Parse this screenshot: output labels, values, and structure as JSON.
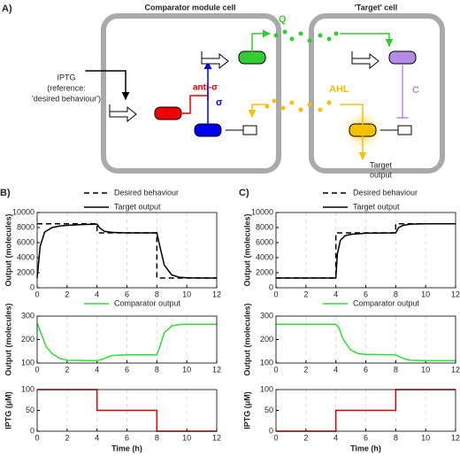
{
  "diagram": {
    "panel_label": "A)",
    "left_cell_title": "Comparator module cell",
    "right_cell_title": "'Target' cell",
    "iptg_lines": [
      "IPTG",
      "(reference:",
      "'desired behaviour')"
    ],
    "anti_sigma": "anti-σ",
    "sigma": "σ",
    "q": "Q",
    "ahl": "AHL",
    "c": "C",
    "target_output_lines": [
      "Target",
      "output"
    ]
  },
  "chart_data": [
    {
      "type": "line",
      "panel_label": "B)",
      "ylabel": "Output (molecules)",
      "xlim": [
        0,
        12
      ],
      "xticks": [
        0,
        2,
        4,
        6,
        8,
        10,
        12
      ],
      "ylim": [
        0,
        10000
      ],
      "yticks": [
        0,
        2000,
        4000,
        6000,
        8000,
        10000
      ],
      "xgrid": true,
      "legend": "top-right",
      "series": [
        {
          "name": "Desired behaviour",
          "color": "#000000",
          "linestyle": "dashed",
          "x": [
            0,
            4,
            4,
            8,
            8,
            12
          ],
          "values": [
            8500,
            8500,
            7300,
            7300,
            1300,
            1300
          ]
        },
        {
          "name": "Target output",
          "color": "#000000",
          "linestyle": "solid",
          "x": [
            0,
            0.2,
            0.5,
            1,
            1.5,
            2,
            3,
            4,
            4.2,
            4.5,
            5,
            6,
            8,
            8.2,
            8.5,
            9,
            9.5,
            10,
            11,
            12
          ],
          "values": [
            1300,
            5500,
            7400,
            8000,
            8200,
            8300,
            8400,
            8450,
            7900,
            7500,
            7350,
            7300,
            7300,
            5500,
            3000,
            1700,
            1400,
            1330,
            1300,
            1300
          ]
        }
      ]
    },
    {
      "type": "line",
      "ylabel": "Output (molecules)",
      "xlim": [
        0,
        12
      ],
      "xticks": [
        0,
        2,
        4,
        6,
        8,
        10,
        12
      ],
      "ylim": [
        100,
        300
      ],
      "yticks": [
        100,
        200,
        300
      ],
      "xgrid": true,
      "legend": "top-right",
      "series": [
        {
          "name": "Comparator output",
          "color": "#33dd33",
          "linestyle": "solid",
          "x": [
            0,
            0.3,
            0.6,
            1,
            1.5,
            2,
            4,
            4.3,
            4.7,
            5,
            6,
            8,
            8.2,
            8.5,
            9,
            9.5,
            10,
            12
          ],
          "values": [
            270,
            220,
            170,
            140,
            120,
            112,
            110,
            115,
            125,
            132,
            135,
            135,
            170,
            230,
            258,
            264,
            265,
            265
          ]
        }
      ]
    },
    {
      "type": "line",
      "ylabel": "IPTG (μM)",
      "xlabel": "Time (h)",
      "xlim": [
        0,
        12
      ],
      "xticks": [
        0,
        2,
        4,
        6,
        8,
        10,
        12
      ],
      "ylim": [
        0,
        100
      ],
      "yticks": [
        0,
        50,
        100
      ],
      "xgrid": true,
      "series": [
        {
          "color": "#dd0000",
          "linestyle": "solid",
          "x": [
            0,
            4,
            4,
            8,
            8,
            12
          ],
          "values": [
            100,
            100,
            50,
            50,
            0,
            0
          ]
        }
      ]
    },
    {
      "type": "line",
      "panel_label": "C)",
      "ylabel": "Output (molecules)",
      "xlim": [
        0,
        12
      ],
      "xticks": [
        0,
        2,
        4,
        6,
        8,
        10,
        12
      ],
      "ylim": [
        0,
        10000
      ],
      "yticks": [
        0,
        2000,
        4000,
        6000,
        8000,
        10000
      ],
      "xgrid": true,
      "legend": "top-right",
      "series": [
        {
          "name": "Desired behaviour",
          "color": "#000000",
          "linestyle": "dashed",
          "x": [
            0,
            4,
            4,
            8,
            8,
            12
          ],
          "values": [
            1300,
            1300,
            7300,
            7300,
            8500,
            8500
          ]
        },
        {
          "name": "Target output",
          "color": "#000000",
          "linestyle": "solid",
          "x": [
            0,
            4,
            4.1,
            4.3,
            4.6,
            5,
            6,
            8,
            8.2,
            8.5,
            9,
            10,
            12
          ],
          "values": [
            1300,
            1300,
            4500,
            6300,
            6900,
            7100,
            7250,
            7300,
            8000,
            8300,
            8450,
            8500,
            8500
          ]
        }
      ]
    },
    {
      "type": "line",
      "ylabel": "Output (molecules)",
      "xlim": [
        0,
        12
      ],
      "xticks": [
        0,
        2,
        4,
        6,
        8,
        10,
        12
      ],
      "ylim": [
        100,
        300
      ],
      "yticks": [
        100,
        200,
        300
      ],
      "xgrid": true,
      "legend": "top-right",
      "series": [
        {
          "name": "Comparator output",
          "color": "#33dd33",
          "linestyle": "solid",
          "x": [
            0,
            4,
            4.2,
            4.5,
            5,
            5.5,
            6,
            8,
            8.3,
            8.7,
            9,
            10,
            12
          ],
          "values": [
            265,
            265,
            250,
            200,
            155,
            140,
            137,
            135,
            125,
            115,
            112,
            110,
            110
          ]
        }
      ]
    },
    {
      "type": "line",
      "ylabel": "IPTG (μM)",
      "xlabel": "Time (h)",
      "xlim": [
        0,
        12
      ],
      "xticks": [
        0,
        2,
        4,
        6,
        8,
        10,
        12
      ],
      "ylim": [
        0,
        100
      ],
      "yticks": [
        0,
        50,
        100
      ],
      "xgrid": true,
      "series": [
        {
          "color": "#dd0000",
          "linestyle": "solid",
          "x": [
            0,
            4,
            4,
            8,
            8,
            12
          ],
          "values": [
            0,
            0,
            50,
            50,
            100,
            100
          ]
        }
      ]
    }
  ]
}
